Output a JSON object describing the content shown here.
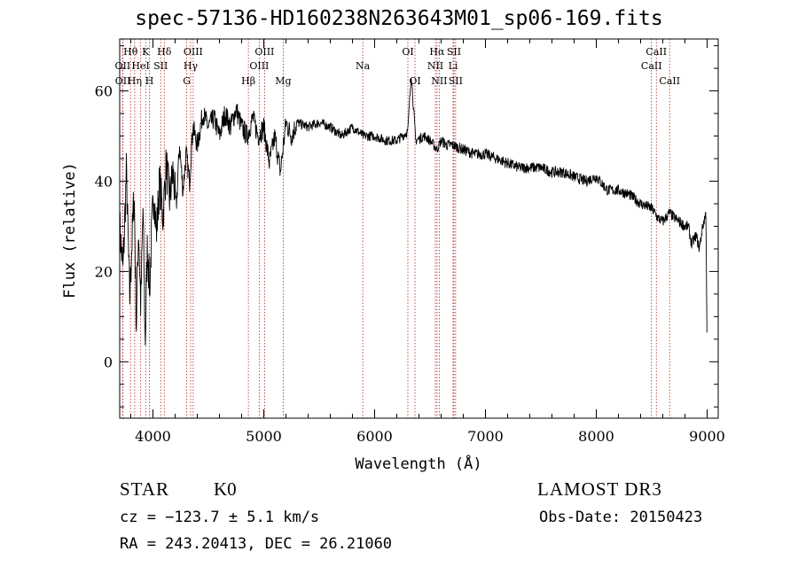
{
  "header": {
    "title": "spec-57136-HD160238N263643M01_sp06-169.fits"
  },
  "info": {
    "class": "STAR",
    "subclass": "K0",
    "survey": "LAMOST DR3",
    "cz": "cz = −123.7 ± 5.1 km/s",
    "obs_date": "Obs-Date: 20150423",
    "coords": "RA = 243.20413, DEC =  26.21060"
  },
  "colors": {
    "spectrum": "#000000",
    "line_marker": "#b22222",
    "axes": "#000000"
  },
  "chart_data": {
    "type": "line",
    "title": "spec-57136-HD160238N263643M01_sp06-169.fits",
    "xlabel": "Wavelength (Å)",
    "ylabel": "Flux (relative)",
    "xlim": [
      3700,
      9100
    ],
    "ylim": [
      -12.5,
      71.5
    ],
    "xticks": [
      4000,
      5000,
      6000,
      7000,
      8000,
      9000
    ],
    "xtick_labels": [
      "4000",
      "5000",
      "6000",
      "7000",
      "8000",
      "9000"
    ],
    "yticks": [
      0,
      20,
      40,
      60
    ],
    "ytick_labels": [
      "0",
      "20",
      "40",
      "60"
    ],
    "grid": false,
    "series": [
      {
        "name": "flux",
        "x": [
          3700,
          3730,
          3760,
          3790,
          3810,
          3830,
          3850,
          3870,
          3890,
          3910,
          3930,
          3950,
          3970,
          3990,
          4010,
          4030,
          4060,
          4090,
          4120,
          4150,
          4180,
          4210,
          4240,
          4270,
          4300,
          4330,
          4360,
          4400,
          4450,
          4500,
          4550,
          4600,
          4650,
          4700,
          4750,
          4800,
          4850,
          4900,
          4950,
          5000,
          5050,
          5100,
          5150,
          5200,
          5250,
          5300,
          5400,
          5500,
          5600,
          5700,
          5800,
          5900,
          6000,
          6100,
          6200,
          6300,
          6330,
          6370,
          6450,
          6500,
          6563,
          6600,
          6650,
          6700,
          6800,
          6900,
          7000,
          7100,
          7200,
          7300,
          7400,
          7500,
          7600,
          7700,
          7800,
          7900,
          8000,
          8100,
          8200,
          8300,
          8400,
          8500,
          8550,
          8600,
          8660,
          8700,
          8750,
          8800,
          8830,
          8860,
          8900,
          8930,
          8960,
          8990,
          9000
        ],
        "y": [
          30,
          20,
          42,
          14,
          26,
          38,
          8,
          30,
          12,
          34,
          4,
          26,
          16,
          30,
          38,
          28,
          40,
          32,
          44,
          36,
          42,
          34,
          48,
          38,
          46,
          40,
          52,
          48,
          55,
          52,
          54,
          50,
          55,
          52,
          56,
          52,
          50,
          54,
          50,
          52,
          44,
          50,
          42,
          53,
          50,
          53,
          52,
          53,
          52,
          50,
          52,
          50,
          50,
          49,
          49,
          51,
          64,
          49,
          50,
          49,
          47,
          49,
          48,
          48,
          47,
          46,
          46,
          45,
          44,
          43,
          43,
          43,
          42,
          42,
          41,
          40,
          41,
          38,
          38,
          37,
          35,
          34,
          32,
          31,
          33,
          32,
          31,
          30,
          30,
          26,
          28,
          25,
          30,
          33,
          0
        ]
      }
    ],
    "spectral_lines": [
      {
        "label": "Hθ",
        "x": 3798,
        "row": 1
      },
      {
        "label": "OII",
        "x": 3727,
        "row": 2
      },
      {
        "label": "OII",
        "x": 3729,
        "row": 3
      },
      {
        "label": "Hη",
        "x": 3835,
        "row": 3
      },
      {
        "label": "HeI",
        "x": 3889,
        "row": 2
      },
      {
        "label": "K",
        "x": 3934,
        "row": 1
      },
      {
        "label": "H",
        "x": 3968,
        "row": 3
      },
      {
        "label": "SII",
        "x": 4070,
        "row": 2
      },
      {
        "label": "Hδ",
        "x": 4102,
        "row": 1
      },
      {
        "label": "OIII",
        "x": 4363,
        "row": 1
      },
      {
        "label": "Hγ",
        "x": 4340,
        "row": 2
      },
      {
        "label": "G",
        "x": 4305,
        "row": 3
      },
      {
        "label": "OIII",
        "x": 5007,
        "row": 1
      },
      {
        "label": "OIII",
        "x": 4959,
        "row": 2
      },
      {
        "label": "Hβ",
        "x": 4861,
        "row": 3
      },
      {
        "label": "Mg",
        "x": 5175,
        "row": 3
      },
      {
        "label": "Na",
        "x": 5893,
        "row": 2
      },
      {
        "label": "OI",
        "x": 6300,
        "row": 1
      },
      {
        "label": "OI",
        "x": 6364,
        "row": 3
      },
      {
        "label": "Hα",
        "x": 6563,
        "row": 1
      },
      {
        "label": "NII",
        "x": 6548,
        "row": 2
      },
      {
        "label": "NII",
        "x": 6583,
        "row": 3
      },
      {
        "label": "SII",
        "x": 6716,
        "row": 1
      },
      {
        "label": "Li",
        "x": 6708,
        "row": 2
      },
      {
        "label": "SII",
        "x": 6731,
        "row": 3
      },
      {
        "label": "CaII",
        "x": 8542,
        "row": 1
      },
      {
        "label": "CaII",
        "x": 8498,
        "row": 2
      },
      {
        "label": "CaII",
        "x": 8662,
        "row": 3
      }
    ]
  }
}
